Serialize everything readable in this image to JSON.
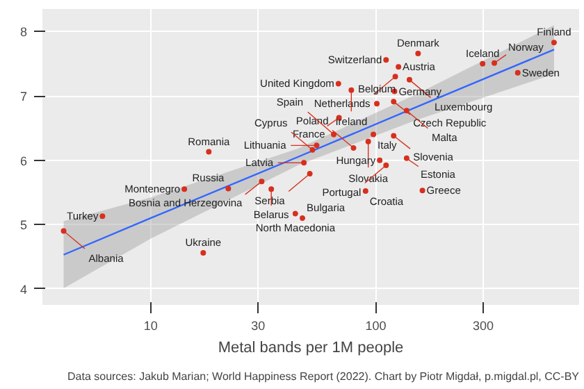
{
  "chart_data": {
    "type": "scatter",
    "xlabel": "Metal bands per 1M people",
    "log": "x",
    "xlim": [
      3.3,
      800
    ],
    "ylim": [
      3.75,
      8.35
    ],
    "xticks": [
      10,
      30,
      100,
      300
    ],
    "yticks": [
      4,
      5,
      6,
      7,
      8
    ],
    "grid": true,
    "series": [
      {
        "marker": "circle",
        "color": "#d7301f",
        "x": [
          619,
          111,
          154,
          298,
          336,
          427,
          126,
          122,
          141,
          121,
          120,
          101,
          137,
          120,
          97.5,
          92.5,
          137,
          104,
          111,
          90,
          161,
          79.6,
          68.2,
          77.8,
          68.6,
          65,
          54.6,
          52.3,
          47.9,
          50.9,
          18.1,
          31.1,
          22.1,
          34.3,
          43.9,
          47.2,
          6.1,
          4.1,
          14.1,
          17.1
        ],
        "values": [
          7.83,
          7.56,
          7.66,
          7.5,
          7.51,
          7.36,
          7.45,
          7.3,
          7.25,
          7.07,
          6.91,
          6.88,
          6.77,
          6.38,
          6.4,
          6.29,
          6.03,
          6.0,
          5.92,
          5.52,
          5.53,
          6.19,
          7.19,
          7.09,
          6.66,
          6.4,
          6.23,
          6.16,
          5.96,
          5.79,
          6.13,
          5.67,
          5.56,
          5.55,
          5.17,
          5.1,
          5.13,
          4.9,
          5.55,
          4.56
        ]
      },
      {
        "type": "line",
        "color": "#3366ff",
        "x": [
          4.1,
          10,
          45,
          150,
          619
        ],
        "values": [
          4.53,
          5.1,
          6.05,
          6.82,
          7.72
        ],
        "lower": [
          4.01,
          4.78,
          5.92,
          6.62,
          7.34
        ],
        "upper": [
          5.05,
          5.42,
          6.18,
          7.02,
          8.1
        ]
      }
    ],
    "annotations": [
      {
        "text": "Finland",
        "x": 619,
        "y": 7.83
      },
      {
        "text": "Switzerland",
        "x": 111,
        "y": 7.56
      },
      {
        "text": "Denmark",
        "x": 154,
        "y": 7.66
      },
      {
        "text": "Iceland",
        "x": 298,
        "y": 7.5
      },
      {
        "text": "Norway",
        "x": 336,
        "y": 7.51
      },
      {
        "text": "Sweden",
        "x": 427,
        "y": 7.36
      },
      {
        "text": "Austria",
        "x": 126,
        "y": 7.45
      },
      {
        "text": "Netherlands",
        "x": 122,
        "y": 7.3
      },
      {
        "text": "Luxembourg",
        "x": 141,
        "y": 7.25
      },
      {
        "text": "Germany",
        "x": 121,
        "y": 7.07
      },
      {
        "text": "Czech Republic",
        "x": 120,
        "y": 6.91
      },
      {
        "text": "Belgium",
        "x": 101,
        "y": 6.88
      },
      {
        "text": "Malta",
        "x": 137,
        "y": 6.77
      },
      {
        "text": "Slovenia",
        "x": 120,
        "y": 6.38
      },
      {
        "text": "Italy",
        "x": 97.5,
        "y": 6.4
      },
      {
        "text": "Slovakia",
        "x": 92.5,
        "y": 6.29
      },
      {
        "text": "Estonia",
        "x": 137,
        "y": 6.03
      },
      {
        "text": "Hungary",
        "x": 104,
        "y": 6.0
      },
      {
        "text": "Portugal",
        "x": 111,
        "y": 5.92
      },
      {
        "text": "Croatia",
        "x": 90,
        "y": 5.52
      },
      {
        "text": "Greece",
        "x": 161,
        "y": 5.53
      },
      {
        "text": "Poland",
        "x": 79.6,
        "y": 6.19
      },
      {
        "text": "United Kingdom",
        "x": 68.2,
        "y": 7.19
      },
      {
        "text": "Ireland",
        "x": 77.8,
        "y": 7.09
      },
      {
        "text": "France",
        "x": 68.6,
        "y": 6.66
      },
      {
        "text": "Spain",
        "x": 65,
        "y": 6.4
      },
      {
        "text": "Lithuania",
        "x": 54.6,
        "y": 6.23
      },
      {
        "text": "Cyprus",
        "x": 52.3,
        "y": 6.16
      },
      {
        "text": "Latvia",
        "x": 47.9,
        "y": 5.96
      },
      {
        "text": "Serbia",
        "x": 50.9,
        "y": 5.79
      },
      {
        "text": "Romania",
        "x": 18.1,
        "y": 6.13
      },
      {
        "text": "Bosnia and Herzegovina",
        "x": 31.1,
        "y": 5.67
      },
      {
        "text": "Russia",
        "x": 22.1,
        "y": 5.56
      },
      {
        "text": "Belarus",
        "x": 34.3,
        "y": 5.55
      },
      {
        "text": "North Macedonia",
        "x": 43.9,
        "y": 5.17
      },
      {
        "text": "Bulgaria",
        "x": 47.2,
        "y": 5.1
      },
      {
        "text": "Turkey",
        "x": 6.1,
        "y": 5.13
      },
      {
        "text": "Albania",
        "x": 4.1,
        "y": 4.9
      },
      {
        "text": "Montenegro",
        "x": 14.1,
        "y": 5.55
      },
      {
        "text": "Ukraine",
        "x": 17.1,
        "y": 4.56
      },
      "Data sources: Jakub Marian; World Happiness Report (2022). Chart by Piotr Migdał, p.migdal.pl, CC-BY"
    ]
  }
}
